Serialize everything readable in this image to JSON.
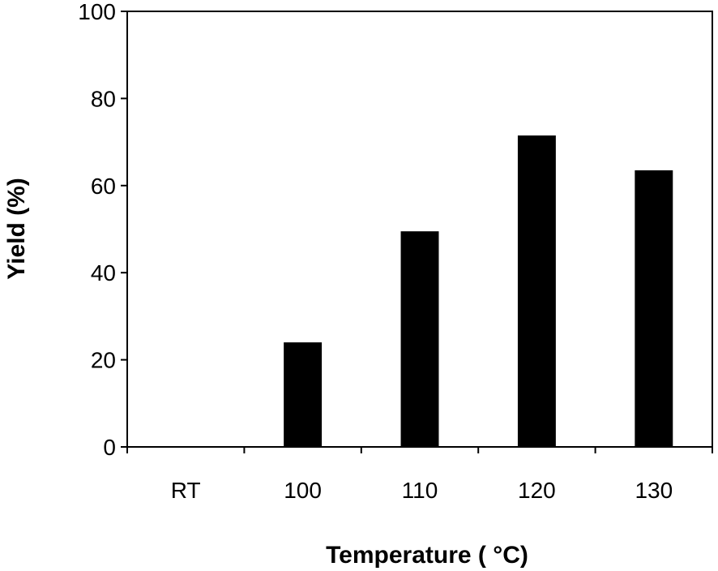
{
  "chart_data": {
    "type": "bar",
    "categories": [
      "RT",
      "100",
      "110",
      "120",
      "130"
    ],
    "values": [
      0,
      24,
      49.5,
      71.5,
      63.5
    ],
    "xlabel": "Temperature ( °C)",
    "ylabel": "Yield (%)",
    "ylim": [
      0,
      100
    ],
    "yticks": [
      "0",
      "20",
      "40",
      "60",
      "80",
      "100"
    ],
    "grid": false,
    "legend": "none",
    "bar_color": "#000000"
  }
}
